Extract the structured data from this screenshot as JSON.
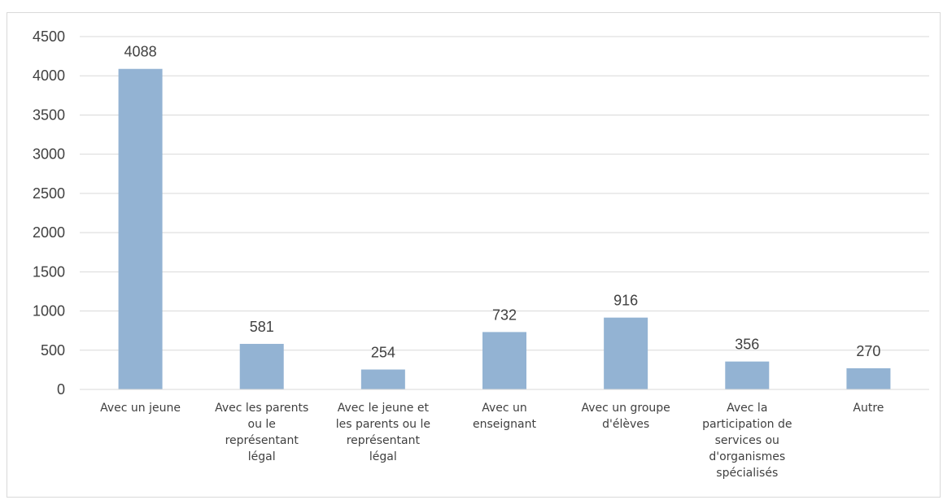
{
  "chart_data": {
    "type": "bar",
    "categories": [
      "Avec un jeune",
      "Avec les parents ou le représentant légal",
      "Avec le jeune et les parents ou le représentant légal",
      "Avec un enseignant",
      "Avec un groupe d'élèves",
      "Avec la participation de services ou d'organismes spécialisés",
      "Autre"
    ],
    "category_lines": [
      [
        "Avec un jeune"
      ],
      [
        "Avec les parents",
        "ou le",
        "représentant",
        "légal"
      ],
      [
        "Avec le jeune et",
        "les parents ou le",
        "représentant",
        "légal"
      ],
      [
        "Avec un",
        "enseignant"
      ],
      [
        "Avec un groupe",
        "d'élèves"
      ],
      [
        "Avec la",
        "participation de",
        "services ou",
        "d'organismes",
        "spécialisés"
      ],
      [
        "Autre"
      ]
    ],
    "values": [
      4088,
      581,
      254,
      732,
      916,
      356,
      270
    ],
    "data_labels": [
      "4088",
      "581",
      "254",
      "732",
      "916",
      "356",
      "270"
    ],
    "yticks": [
      "0",
      "500",
      "1000",
      "1500",
      "2000",
      "2500",
      "3000",
      "3500",
      "4000",
      "4500"
    ],
    "ylim": [
      0,
      4500
    ],
    "grid": true,
    "bar_color": "#93b3d3",
    "grid_color": "#d9d9d9",
    "text_color": "#404040"
  }
}
